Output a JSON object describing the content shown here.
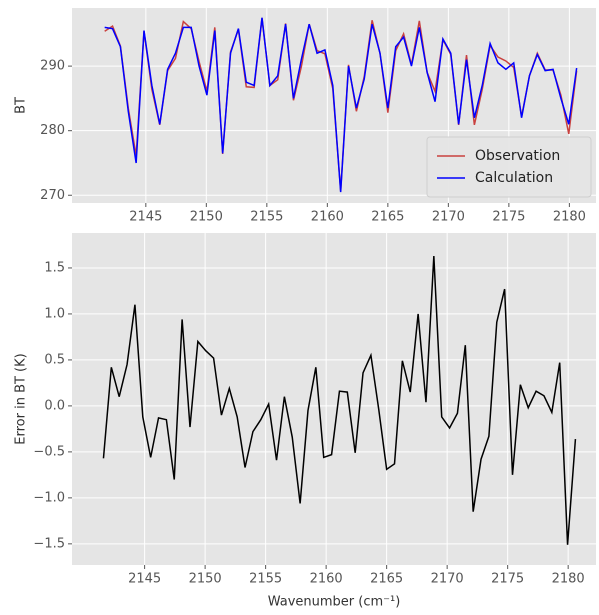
{
  "chart_data": [
    {
      "type": "line",
      "ylabel": "BT",
      "x": [
        2141.6,
        2142.25,
        2142.9,
        2143.55,
        2144.2,
        2144.85,
        2145.5,
        2146.15,
        2146.8,
        2147.45,
        2148.1,
        2148.75,
        2149.4,
        2150.05,
        2150.7,
        2151.35,
        2152.0,
        2152.65,
        2153.3,
        2153.95,
        2154.6,
        2155.25,
        2155.9,
        2156.55,
        2157.2,
        2157.85,
        2158.5,
        2159.15,
        2159.8,
        2160.45,
        2161.1,
        2161.75,
        2162.4,
        2163.05,
        2163.7,
        2164.35,
        2165.0,
        2165.65,
        2166.3,
        2166.95,
        2167.6,
        2168.25,
        2168.9,
        2169.55,
        2170.2,
        2170.85,
        2171.5,
        2172.15,
        2172.8,
        2173.45,
        2174.1,
        2174.75,
        2175.4,
        2176.05,
        2176.7,
        2177.35,
        2178.0,
        2178.65,
        2179.3,
        2179.95,
        2180.6
      ],
      "series": [
        {
          "name": "Observation",
          "color": "#c9413f",
          "values": [
            295.4,
            296.2,
            293.1,
            283.5,
            276.1,
            295.4,
            286.4,
            280.9,
            289.3,
            291.2,
            296.9,
            295.8,
            290.7,
            286.1,
            296.0,
            276.4,
            292.2,
            295.7,
            286.8,
            286.7,
            297.4,
            287.0,
            287.9,
            296.6,
            284.7,
            289.9,
            296.5,
            292.4,
            291.9,
            286.5,
            270.7,
            290.2,
            283.0,
            288.4,
            297.1,
            292.0,
            282.8,
            292.4,
            295.0,
            290.2,
            297.0,
            289.0,
            286.1,
            294.1,
            291.8,
            280.9,
            291.7,
            280.9,
            286.4,
            293.2,
            291.4,
            290.8,
            289.8,
            282.2,
            288.5,
            292.0,
            289.4,
            289.4,
            285.5,
            279.5,
            289.3
          ]
        },
        {
          "name": "Calculation",
          "color": "#0000ff",
          "values": [
            296,
            295.8,
            293,
            283,
            275,
            295.5,
            287,
            281,
            289.5,
            292,
            296,
            296,
            290,
            285.5,
            295.5,
            276.5,
            292,
            295.8,
            287.5,
            287,
            297.5,
            287,
            288.5,
            296.5,
            285,
            291,
            296.5,
            292,
            292.5,
            287,
            270.5,
            290,
            283.5,
            288,
            296.5,
            292,
            283.5,
            293,
            294.5,
            290,
            296,
            289,
            284.5,
            294.2,
            292,
            281,
            291,
            282,
            287,
            293.5,
            290.5,
            289.5,
            290.5,
            282,
            288.5,
            291.8,
            289.3,
            289.5,
            285,
            281,
            289.7
          ]
        }
      ],
      "xlim": [
        2138.9,
        2182.2
      ],
      "xticks": [
        2145,
        2150,
        2155,
        2160,
        2165,
        2170,
        2175,
        2180
      ],
      "ylim": [
        268.8,
        299.0
      ],
      "yticks": [
        270,
        280,
        290
      ],
      "grid": true,
      "legend": "lower right"
    },
    {
      "type": "line",
      "ylabel": "Error in BT (K)",
      "xlabel": "Wavenumber (cm⁻¹)",
      "x": [
        2141.6,
        2142.25,
        2142.9,
        2143.55,
        2144.2,
        2144.85,
        2145.5,
        2146.15,
        2146.8,
        2147.45,
        2148.1,
        2148.75,
        2149.4,
        2150.05,
        2150.7,
        2151.35,
        2152.0,
        2152.65,
        2153.3,
        2153.95,
        2154.6,
        2155.25,
        2155.9,
        2156.55,
        2157.2,
        2157.85,
        2158.5,
        2159.15,
        2159.8,
        2160.45,
        2161.1,
        2161.75,
        2162.4,
        2163.05,
        2163.7,
        2164.35,
        2165.0,
        2165.65,
        2166.3,
        2166.95,
        2167.6,
        2168.25,
        2168.9,
        2169.55,
        2170.2,
        2170.85,
        2171.5,
        2172.15,
        2172.8,
        2173.45,
        2174.1,
        2174.75,
        2175.4,
        2176.05,
        2176.7,
        2177.35,
        2178.0,
        2178.65,
        2179.3,
        2179.95,
        2180.6
      ],
      "series": [
        {
          "color": "#000000",
          "values": [
            -0.57,
            0.42,
            0.1,
            0.45,
            1.1,
            -0.12,
            -0.56,
            -0.13,
            -0.15,
            -0.8,
            0.94,
            -0.23,
            0.7,
            0.6,
            0.52,
            -0.1,
            0.19,
            -0.12,
            -0.67,
            -0.28,
            -0.15,
            0.02,
            -0.59,
            0.1,
            -0.34,
            -1.06,
            -0.05,
            0.42,
            -0.56,
            -0.53,
            0.16,
            0.15,
            -0.51,
            0.36,
            0.55,
            -0.04,
            -0.69,
            -0.63,
            0.49,
            0.15,
            1.0,
            0.04,
            1.63,
            -0.12,
            -0.24,
            -0.08,
            0.66,
            -1.15,
            -0.58,
            -0.33,
            0.91,
            1.27,
            -0.75,
            0.23,
            -0.02,
            0.16,
            0.11,
            -0.07,
            0.47,
            -1.51,
            -0.36
          ]
        }
      ],
      "xlim": [
        2139.0,
        2182.3
      ],
      "xticks": [
        2145,
        2150,
        2155,
        2160,
        2165,
        2170,
        2175,
        2180
      ],
      "ylim": [
        -1.73,
        1.88
      ],
      "yticks": [
        {
          "value": -1.5,
          "label": "−1.5"
        },
        {
          "value": -1,
          "label": "−1.0"
        },
        {
          "value": -0.5,
          "label": "−0.5"
        },
        {
          "value": 0,
          "label": "0.0"
        },
        0.5,
        {
          "value": 1,
          "label": "1.0"
        },
        1.5
      ],
      "grid": true
    }
  ]
}
